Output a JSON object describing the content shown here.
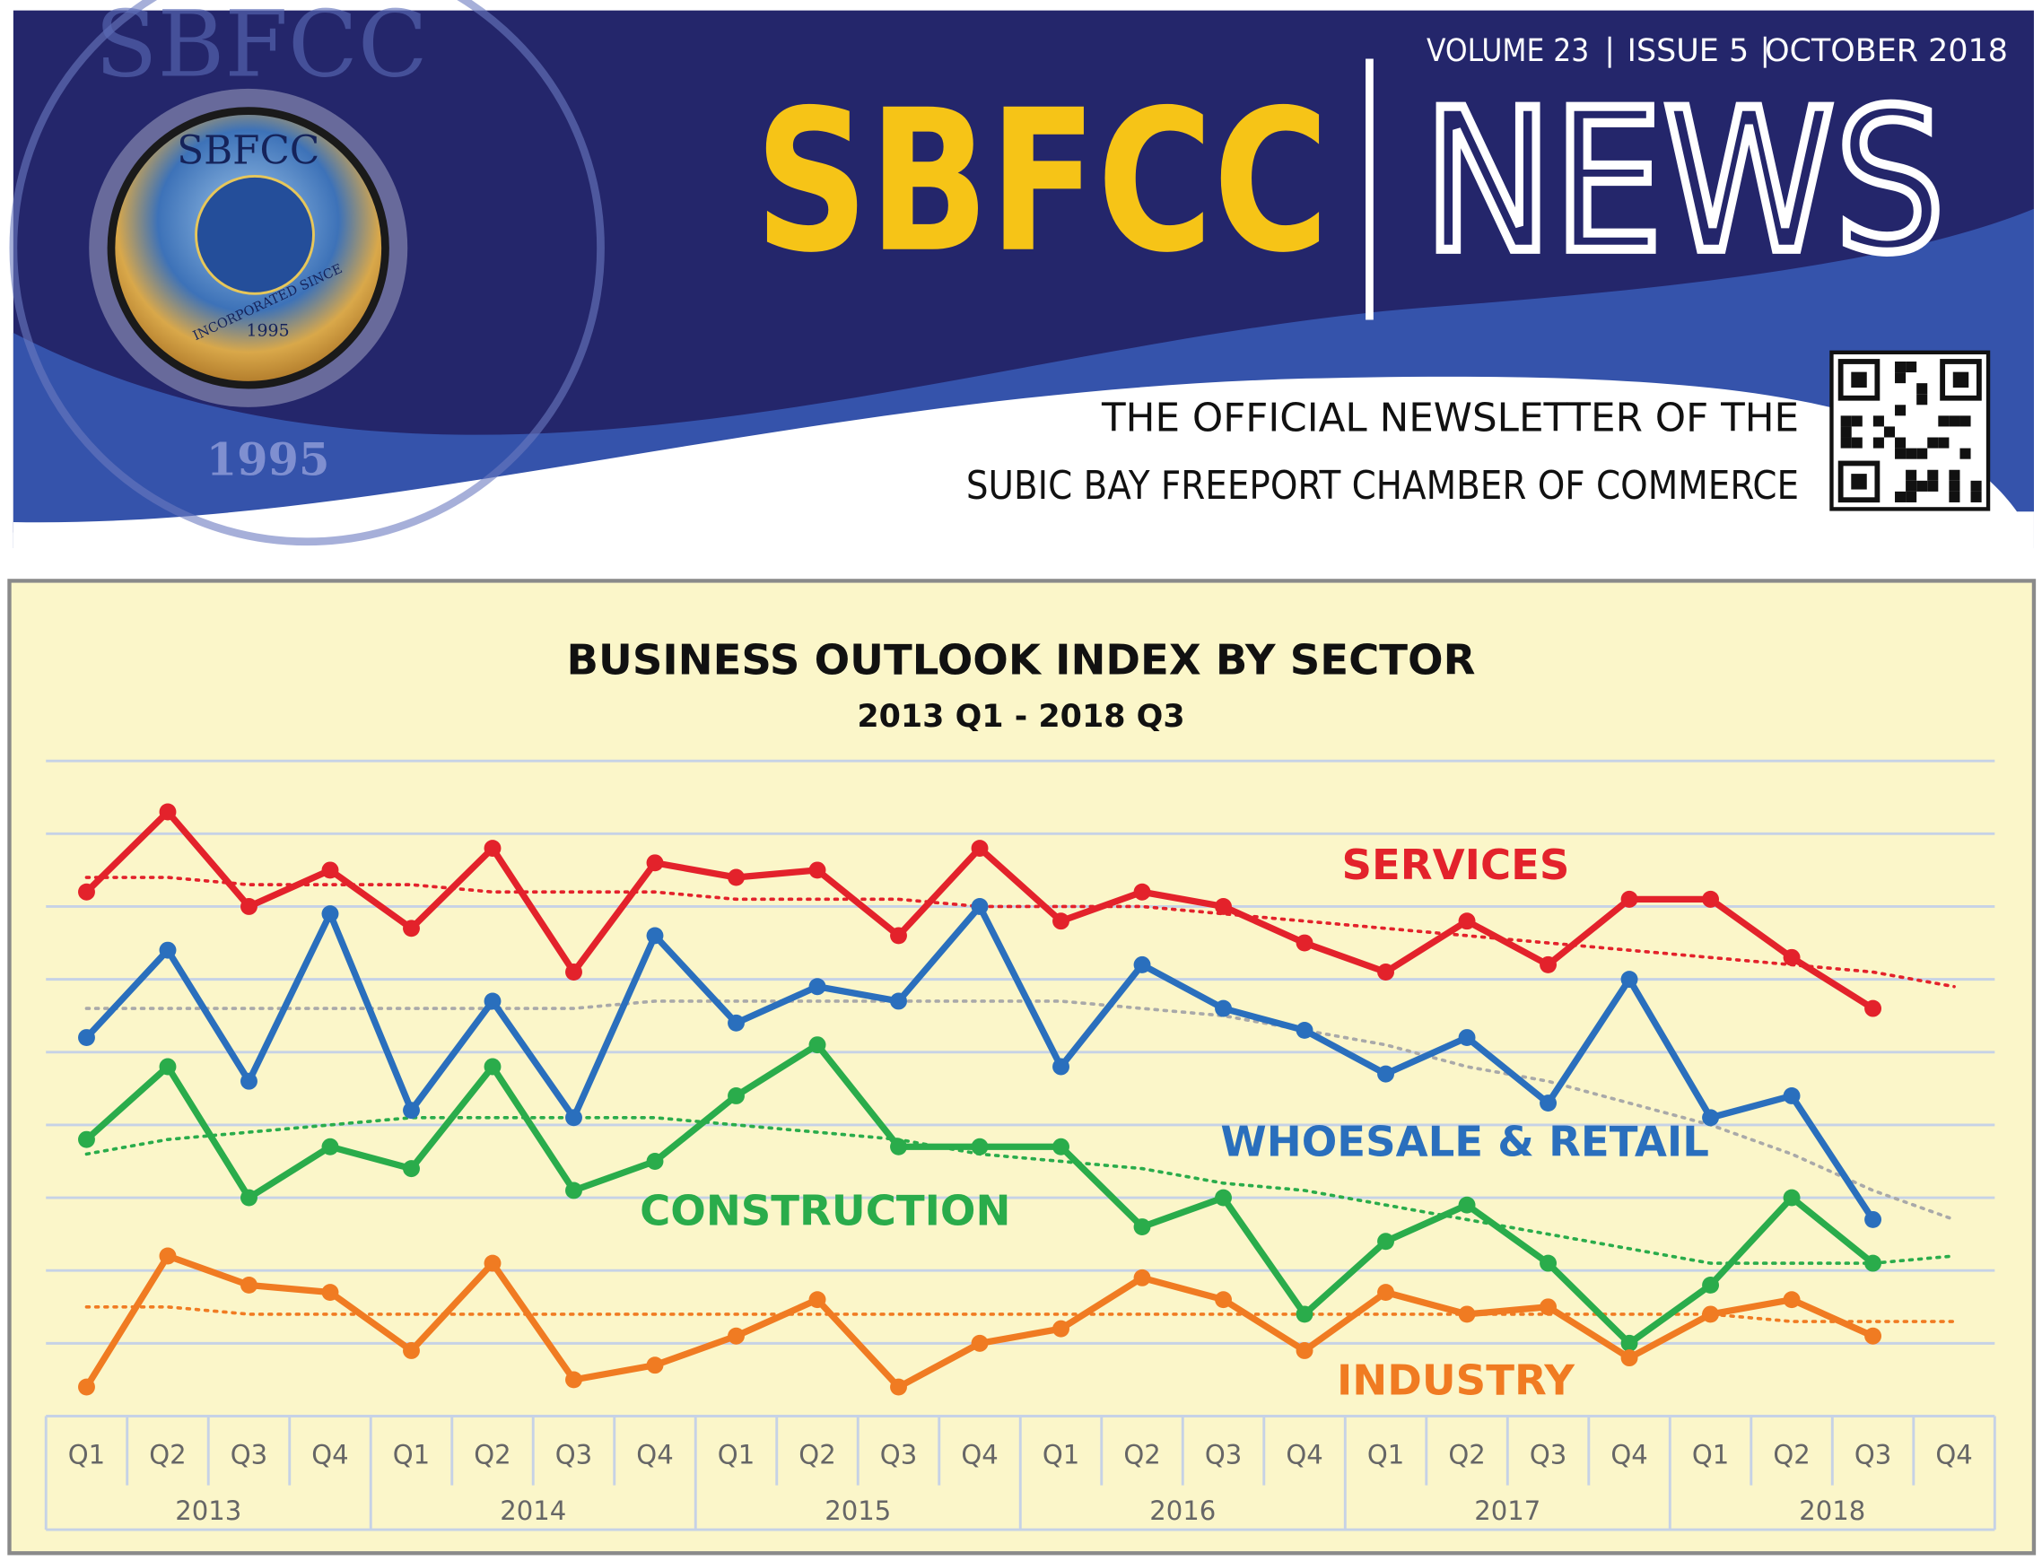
{
  "header": {
    "volume": "VOLUME 23",
    "issue": "ISSUE 5",
    "date": "OCTOBER 2018",
    "brand": "SBFCC",
    "brand_suffix": "NEWS",
    "tagline": [
      "THE OFFICIAL NEWSLETTER OF THE",
      "SUBIC BAY FREEPORT CHAMBER OF COMMERCE"
    ],
    "logo": {
      "name": "SBFCC",
      "motto": "INCORPORATED SINCE",
      "year": "1995"
    }
  },
  "chart_data": {
    "type": "line",
    "title": "BUSINESS OUTLOOK INDEX BY SECTOR",
    "subtitle": "2013 Q1 - 2018 Q3",
    "categories": [
      "Q1",
      "Q2",
      "Q3",
      "Q4",
      "Q1",
      "Q2",
      "Q3",
      "Q4",
      "Q1",
      "Q2",
      "Q3",
      "Q4",
      "Q1",
      "Q2",
      "Q3",
      "Q4",
      "Q1",
      "Q2",
      "Q3",
      "Q4",
      "Q1",
      "Q2",
      "Q3",
      "Q4"
    ],
    "x_groups": [
      "2013",
      "2014",
      "2015",
      "2016",
      "2017",
      "2018"
    ],
    "ylim": [
      0,
      9
    ],
    "yticks": [
      1,
      2,
      3,
      4,
      5,
      6,
      7,
      8,
      9
    ],
    "grid": true,
    "legend": "inline",
    "series": [
      {
        "name": "SERVICES",
        "color": "#e3222b",
        "trend_color": "#e3222b",
        "values": [
          7.2,
          8.3,
          7.0,
          7.5,
          6.7,
          7.8,
          6.1,
          7.6,
          7.4,
          7.5,
          6.6,
          7.8,
          6.8,
          7.2,
          7.0,
          6.5,
          6.1,
          6.8,
          6.2,
          7.1,
          7.1,
          6.3,
          5.6,
          null
        ],
        "trend": [
          7.4,
          7.4,
          7.3,
          7.3,
          7.3,
          7.2,
          7.2,
          7.2,
          7.1,
          7.1,
          7.1,
          7.0,
          7.0,
          7.0,
          6.9,
          6.8,
          6.7,
          6.6,
          6.5,
          6.4,
          6.3,
          6.2,
          6.1,
          5.9
        ]
      },
      {
        "name": "WHOESALE & RETAIL",
        "color": "#2a6fbd",
        "trend_color": "#a9a9a9",
        "values": [
          5.2,
          6.4,
          4.6,
          6.9,
          4.2,
          5.7,
          4.1,
          6.6,
          5.4,
          5.9,
          5.7,
          7.0,
          4.8,
          6.2,
          5.6,
          5.3,
          4.7,
          5.2,
          4.3,
          6.0,
          4.1,
          4.4,
          2.7,
          null
        ],
        "trend": [
          5.6,
          5.6,
          5.6,
          5.6,
          5.6,
          5.6,
          5.6,
          5.7,
          5.7,
          5.7,
          5.7,
          5.7,
          5.7,
          5.6,
          5.5,
          5.3,
          5.1,
          4.8,
          4.6,
          4.3,
          4.0,
          3.6,
          3.1,
          2.7
        ]
      },
      {
        "name": "CONSTRUCTION",
        "color": "#2aac4b",
        "trend_color": "#2aac4b",
        "values": [
          3.8,
          4.8,
          3.0,
          3.7,
          3.4,
          4.8,
          3.1,
          3.5,
          4.4,
          5.1,
          3.7,
          3.7,
          3.7,
          2.6,
          3.0,
          1.4,
          2.4,
          2.9,
          2.1,
          1.0,
          1.8,
          3.0,
          2.1,
          null
        ],
        "trend": [
          3.6,
          3.8,
          3.9,
          4.0,
          4.1,
          4.1,
          4.1,
          4.1,
          4.0,
          3.9,
          3.8,
          3.6,
          3.5,
          3.4,
          3.2,
          3.1,
          2.9,
          2.7,
          2.5,
          2.3,
          2.1,
          2.1,
          2.1,
          2.2
        ]
      },
      {
        "name": "INDUSTRY",
        "color": "#f07b22",
        "trend_color": "#f07b22",
        "values": [
          0.4,
          2.2,
          1.8,
          1.7,
          0.9,
          2.1,
          0.5,
          0.7,
          1.1,
          1.6,
          0.4,
          1.0,
          1.2,
          1.9,
          1.6,
          0.9,
          1.7,
          1.4,
          1.5,
          0.8,
          1.4,
          1.6,
          1.1,
          null
        ],
        "trend": [
          1.5,
          1.5,
          1.4,
          1.4,
          1.4,
          1.4,
          1.4,
          1.4,
          1.4,
          1.4,
          1.4,
          1.4,
          1.4,
          1.4,
          1.4,
          1.4,
          1.4,
          1.4,
          1.4,
          1.4,
          1.4,
          1.3,
          1.3,
          1.3
        ]
      }
    ]
  }
}
